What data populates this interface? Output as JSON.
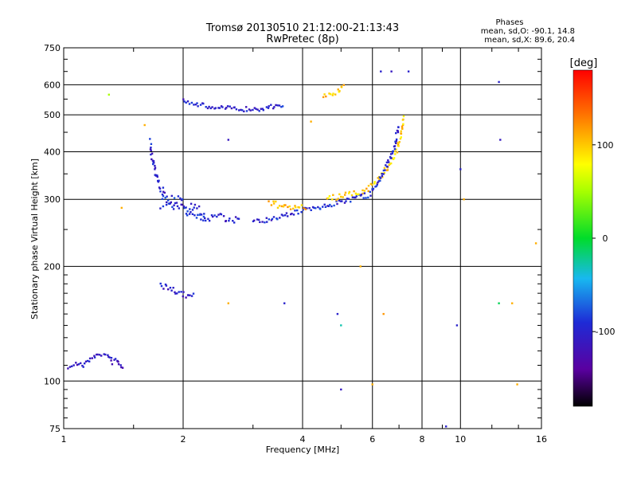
{
  "title_line1": "Tromsø 20130510 21:12:00-21:13:43",
  "title_line2": "RwPretec (8p)",
  "phases": {
    "title": "Phases",
    "line_o": "mean, sd,O: -90.1, 14.8",
    "line_x": "mean, sd,X:  89.6, 20.4"
  },
  "colorbar": {
    "unit": "[deg]",
    "range": [
      -180,
      180
    ],
    "ticks": [
      100,
      0,
      -100
    ],
    "tick_labels": [
      "100",
      "0",
      "-100"
    ]
  },
  "chart_data": {
    "type": "scatter",
    "xlabel": "Frequency [MHz]",
    "ylabel": "Stationary phase Virtual Height [km]",
    "xscale": "log",
    "yscale": "log",
    "xlim": [
      1,
      16
    ],
    "ylim": [
      75,
      750
    ],
    "xticks": [
      1,
      2,
      4,
      6,
      8,
      10,
      16
    ],
    "xtick_labels": [
      "1",
      "2",
      "4",
      "6",
      "8",
      "10",
      "16"
    ],
    "yticks": [
      75,
      100,
      200,
      300,
      400,
      500,
      600,
      750
    ],
    "ytick_labels": [
      "75",
      "100",
      "200",
      "300",
      "400",
      "500",
      "600",
      "750"
    ],
    "grid": true,
    "color_by": "phase (deg)",
    "traces": [
      {
        "x": [
          1.03,
          1.07,
          1.12,
          1.17,
          1.22,
          1.26,
          1.3,
          1.33,
          1.36,
          1.39,
          1.42
        ],
        "y": [
          109,
          111,
          110,
          114,
          117,
          118,
          116,
          112,
          114,
          110,
          109
        ],
        "phase": -110,
        "spread": 2.5
      },
      {
        "x": [
          1.65,
          1.68,
          1.72,
          1.78,
          1.85,
          1.95,
          2.05,
          2.2,
          2.4,
          2.6,
          2.8
        ],
        "y": [
          420,
          380,
          340,
          310,
          295,
          285,
          278,
          272,
          268,
          265,
          262
        ],
        "phase": -100,
        "spread": 6
      },
      {
        "x": [
          1.75,
          1.85,
          1.95,
          2.05,
          2.15,
          2.3
        ],
        "y": [
          290,
          300,
          296,
          288,
          282,
          276
        ],
        "phase": -90,
        "spread": 7
      },
      {
        "x": [
          2.0,
          2.1,
          2.3,
          2.6,
          2.9,
          3.2,
          3.4,
          3.6
        ],
        "y": [
          548,
          538,
          525,
          520,
          517,
          520,
          526,
          533
        ],
        "phase": -100,
        "spread": 3
      },
      {
        "x": [
          3.0,
          3.2,
          3.4,
          3.6,
          3.8,
          4.0,
          4.4,
          4.8,
          5.2,
          5.6
        ],
        "y": [
          262,
          264,
          268,
          272,
          276,
          280,
          286,
          292,
          298,
          305
        ],
        "phase": -95,
        "spread": 3
      },
      {
        "x": [
          3.3,
          3.5,
          3.7,
          3.9,
          4.1
        ],
        "y": [
          292,
          290,
          288,
          286,
          284
        ],
        "phase": 110,
        "spread": 4
      },
      {
        "x": [
          4.6,
          5.0,
          5.6,
          6.1,
          6.5,
          6.9,
          7.1,
          7.2
        ],
        "y": [
          300,
          305,
          312,
          330,
          360,
          400,
          450,
          500
        ],
        "phase": 100,
        "spread": 4
      },
      {
        "x": [
          5.6,
          5.9,
          6.2,
          6.5,
          6.8,
          7.0
        ],
        "y": [
          302,
          310,
          330,
          365,
          410,
          470
        ],
        "phase": -95,
        "spread": 4
      },
      {
        "x": [
          1.75,
          1.85,
          1.95,
          2.05,
          2.15
        ],
        "y": [
          178,
          175,
          170,
          168,
          166
        ],
        "phase": -105,
        "spread": 4
      },
      {
        "x": [
          4.5,
          4.7,
          4.9,
          5.0,
          5.1
        ],
        "y": [
          560,
          565,
          575,
          585,
          595
        ],
        "phase": 100,
        "spread": 3
      }
    ],
    "scattered_points": [
      {
        "x": 1.3,
        "y": 565,
        "phase": 50
      },
      {
        "x": 1.6,
        "y": 470,
        "phase": 110
      },
      {
        "x": 2.6,
        "y": 430,
        "phase": -110
      },
      {
        "x": 4.2,
        "y": 480,
        "phase": 110
      },
      {
        "x": 6.3,
        "y": 650,
        "phase": -100
      },
      {
        "x": 6.7,
        "y": 650,
        "phase": -110
      },
      {
        "x": 7.4,
        "y": 650,
        "phase": -100
      },
      {
        "x": 10,
        "y": 360,
        "phase": -100
      },
      {
        "x": 10.2,
        "y": 300,
        "phase": 110
      },
      {
        "x": 12.5,
        "y": 610,
        "phase": -100
      },
      {
        "x": 12.6,
        "y": 430,
        "phase": -110
      },
      {
        "x": 15.5,
        "y": 230,
        "phase": 110
      },
      {
        "x": 4.9,
        "y": 150,
        "phase": -100
      },
      {
        "x": 5.0,
        "y": 140,
        "phase": -30
      },
      {
        "x": 5.0,
        "y": 95,
        "phase": -110
      },
      {
        "x": 5.6,
        "y": 200,
        "phase": 110
      },
      {
        "x": 6.4,
        "y": 150,
        "phase": 120
      },
      {
        "x": 9.8,
        "y": 140,
        "phase": -100
      },
      {
        "x": 12.5,
        "y": 160,
        "phase": -10
      },
      {
        "x": 13.5,
        "y": 160,
        "phase": 110
      },
      {
        "x": 3.6,
        "y": 160,
        "phase": -100
      },
      {
        "x": 2.6,
        "y": 160,
        "phase": 110
      },
      {
        "x": 9.2,
        "y": 76,
        "phase": -100
      },
      {
        "x": 6.0,
        "y": 98,
        "phase": 110
      },
      {
        "x": 13.9,
        "y": 98,
        "phase": 110
      },
      {
        "x": 1.4,
        "y": 285,
        "phase": 110
      }
    ]
  }
}
